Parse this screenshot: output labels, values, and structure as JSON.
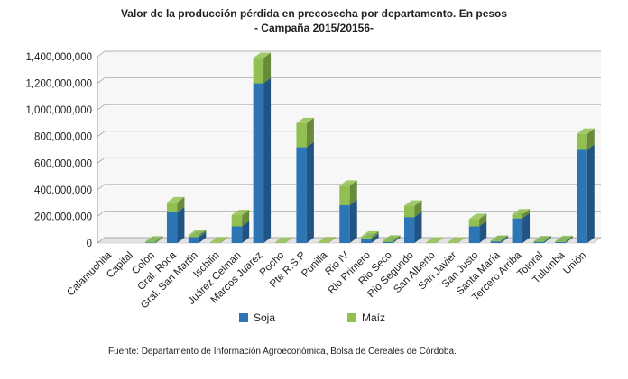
{
  "chart_data": {
    "type": "bar",
    "stacked": true,
    "title": "Valor de la producción pérdida en precosecha por departamento. En pesos",
    "subtitle": "- Campaña 2015/20156-",
    "categories": [
      "Calamuchita",
      "Capital",
      "Colon",
      "Gral. Roca",
      "Gral. San Martin",
      "Ischilin",
      "Juárez Celman",
      "Marcos Juarez",
      "Pocho",
      "Pte R.S.P",
      "Punilla",
      "Rio IV",
      "Rio Primero",
      "Rio Seco",
      "Rio Segundo",
      "San Alberto",
      "San Javier",
      "San Justo",
      "Santa María",
      "Tercero Arriba",
      "Totoral",
      "Tulumba",
      "Unión"
    ],
    "series": [
      {
        "name": "Soja",
        "color": "#2E75B6",
        "values": [
          0,
          0,
          3000000,
          230000000,
          45000000,
          0,
          125000000,
          1200000000,
          0,
          720000000,
          0,
          285000000,
          30000000,
          8000000,
          195000000,
          0,
          0,
          125000000,
          12000000,
          185000000,
          8000000,
          7000000,
          700000000
        ]
      },
      {
        "name": "Maíz",
        "color": "#92C050",
        "values": [
          0,
          0,
          8000000,
          75000000,
          15000000,
          5000000,
          85000000,
          190000000,
          3000000,
          180000000,
          5000000,
          145000000,
          18000000,
          10000000,
          85000000,
          3000000,
          3000000,
          55000000,
          5000000,
          30000000,
          5000000,
          7000000,
          120000000
        ]
      }
    ],
    "yticks": [
      "0",
      "200,000,000",
      "400,000,000",
      "600,000,000",
      "800,000,000",
      "1,000,000,000",
      "1,200,000,000",
      "1,400,000,000"
    ],
    "ylim": [
      0,
      1400000000
    ],
    "grid": true,
    "legend_position": "bottom"
  },
  "source": "Fuente: Departamento de Información Agroeconómica, Bolsa de Cereales de Córdoba."
}
